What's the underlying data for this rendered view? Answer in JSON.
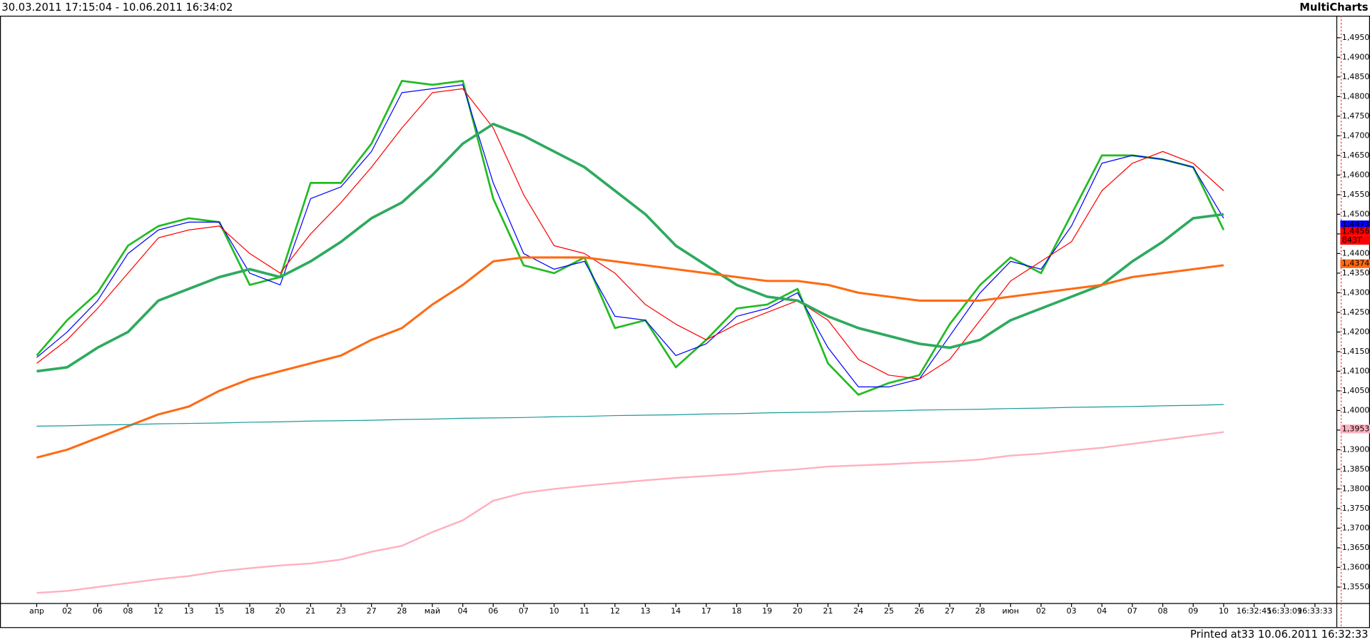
{
  "chart_data": {
    "type": "line",
    "title": "30.03.2011 17:15:04 - 10.06.2011 16:34:02",
    "brand": "MultiCharts",
    "footer": "Printed at33 10.06.2011 16:32:33",
    "categories": [
      "апр",
      "02",
      "06",
      "08",
      "12",
      "13",
      "15",
      "18",
      "20",
      "21",
      "23",
      "27",
      "28",
      "май",
      "04",
      "06",
      "07",
      "10",
      "11",
      "12",
      "13",
      "14",
      "17",
      "18",
      "19",
      "20",
      "21",
      "24",
      "25",
      "26",
      "27",
      "28",
      "июн",
      "02",
      "03",
      "04",
      "07",
      "08",
      "09",
      "10",
      "16:32:45",
      "16:33:09",
      "16:33:33"
    ],
    "series": [
      {
        "color": "#22bb22",
        "width": 2.2,
        "values": [
          1.414,
          1.423,
          1.43,
          1.442,
          1.447,
          1.449,
          1.448,
          1.432,
          1.434,
          1.458,
          1.458,
          1.468,
          1.484,
          1.483,
          1.484,
          1.454,
          1.437,
          1.435,
          1.439,
          1.421,
          1.423,
          1.411,
          1.418,
          1.426,
          1.427,
          1.431,
          1.412,
          1.404,
          1.407,
          1.409,
          1.422,
          1.432,
          1.439,
          1.435,
          1.45,
          1.465,
          1.465,
          1.464,
          1.462,
          1.446,
          null,
          null,
          null
        ]
      },
      {
        "color": "#0000ff",
        "width": 1,
        "values": [
          1.4135,
          1.42,
          1.428,
          1.44,
          1.446,
          1.448,
          1.448,
          1.435,
          1.432,
          1.454,
          1.457,
          1.466,
          1.481,
          1.482,
          1.483,
          1.458,
          1.44,
          1.436,
          1.438,
          1.424,
          1.423,
          1.414,
          1.417,
          1.424,
          1.426,
          1.43,
          1.416,
          1.406,
          1.406,
          1.408,
          1.419,
          1.43,
          1.438,
          1.436,
          1.447,
          1.463,
          1.465,
          1.464,
          1.462,
          1.449,
          null,
          null,
          null
        ]
      },
      {
        "color": "#ff0000",
        "width": 1,
        "values": [
          1.412,
          1.418,
          1.426,
          1.435,
          1.444,
          1.446,
          1.447,
          1.44,
          1.435,
          1.445,
          1.453,
          1.462,
          1.472,
          1.481,
          1.482,
          1.472,
          1.455,
          1.442,
          1.44,
          1.435,
          1.427,
          1.422,
          1.418,
          1.422,
          1.425,
          1.428,
          1.423,
          1.413,
          1.409,
          1.408,
          1.413,
          1.423,
          1.433,
          1.438,
          1.443,
          1.456,
          1.463,
          1.466,
          1.463,
          1.456,
          null,
          null,
          null
        ]
      },
      {
        "color": "#2eaa5e",
        "width": 3,
        "values": [
          1.41,
          1.411,
          1.416,
          1.42,
          1.428,
          1.431,
          1.434,
          1.436,
          1.434,
          1.438,
          1.443,
          1.449,
          1.453,
          1.46,
          1.468,
          1.473,
          1.47,
          1.466,
          1.462,
          1.456,
          1.45,
          1.442,
          1.437,
          1.432,
          1.429,
          1.428,
          1.424,
          1.421,
          1.419,
          1.417,
          1.416,
          1.418,
          1.423,
          1.426,
          1.429,
          1.432,
          1.438,
          1.443,
          1.449,
          1.45,
          null,
          null,
          null
        ]
      },
      {
        "color": "#ff6a13",
        "width": 2.5,
        "values": [
          1.388,
          1.39,
          1.393,
          1.396,
          1.399,
          1.401,
          1.405,
          1.408,
          1.41,
          1.412,
          1.414,
          1.418,
          1.421,
          1.427,
          1.432,
          1.438,
          1.439,
          1.439,
          1.439,
          1.438,
          1.437,
          1.436,
          1.435,
          1.434,
          1.433,
          1.433,
          1.432,
          1.43,
          1.429,
          1.428,
          1.428,
          1.428,
          1.429,
          1.43,
          1.431,
          1.432,
          1.434,
          1.435,
          1.436,
          1.437,
          null,
          null,
          null
        ]
      },
      {
        "color": "#1a9a9a",
        "width": 1,
        "values": [
          1.396,
          1.3961,
          1.3963,
          1.3964,
          1.3966,
          1.3967,
          1.3968,
          1.397,
          1.3971,
          1.3973,
          1.3974,
          1.3975,
          1.3977,
          1.3978,
          1.398,
          1.3981,
          1.3982,
          1.3984,
          1.3985,
          1.3987,
          1.3988,
          1.3989,
          1.3991,
          1.3992,
          1.3994,
          1.3995,
          1.3996,
          1.3998,
          1.3999,
          1.4001,
          1.4002,
          1.4003,
          1.4005,
          1.4006,
          1.4008,
          1.4009,
          1.401,
          1.4012,
          1.4013,
          1.4015,
          null,
          null,
          null
        ]
      },
      {
        "color": "#ffb0c0",
        "width": 2,
        "values": [
          1.3535,
          1.354,
          1.355,
          1.356,
          1.357,
          1.3578,
          1.359,
          1.3598,
          1.3605,
          1.361,
          1.362,
          1.364,
          1.3655,
          1.369,
          1.372,
          1.377,
          1.379,
          1.38,
          1.3808,
          1.3815,
          1.3822,
          1.3828,
          1.3833,
          1.3838,
          1.3845,
          1.385,
          1.3857,
          1.386,
          1.3863,
          1.3867,
          1.387,
          1.3875,
          1.3885,
          1.389,
          1.3898,
          1.3905,
          1.3915,
          1.3925,
          1.3935,
          1.3945,
          null,
          null,
          null
        ]
      }
    ],
    "markers": [
      {
        "value": 1.4473,
        "label": "1,4473",
        "color": "#0000ff"
      },
      {
        "value": 1.4456,
        "label": "1,4456",
        "color": "#ff0000"
      },
      {
        "label": "843T",
        "color": "#ff0000"
      },
      {
        "value": 1.4374,
        "label": "1,4374",
        "color": "#ff6a13"
      },
      {
        "value": 1.3953,
        "label": "1,3953",
        "color": "#ffb0c0"
      }
    ],
    "ylim": [
      1.3508,
      1.5006
    ],
    "yticks": [
      {
        "value": 1.355,
        "label": "1,3550"
      },
      {
        "value": 1.36,
        "label": "1,3600"
      },
      {
        "value": 1.365,
        "label": "1,3650"
      },
      {
        "value": 1.37,
        "label": "1,3700"
      },
      {
        "value": 1.375,
        "label": "1,3750"
      },
      {
        "value": 1.38,
        "label": "1,3800"
      },
      {
        "value": 1.385,
        "label": "1,3850"
      },
      {
        "value": 1.39,
        "label": "1,3900"
      },
      {
        "value": 1.395,
        "label": "1,3950"
      },
      {
        "value": 1.4,
        "label": "1,4000"
      },
      {
        "value": 1.405,
        "label": "1,4050"
      },
      {
        "value": 1.41,
        "label": "1,4100"
      },
      {
        "value": 1.415,
        "label": "1,4150"
      },
      {
        "value": 1.42,
        "label": "1,4200"
      },
      {
        "value": 1.425,
        "label": "1,4250"
      },
      {
        "value": 1.43,
        "label": "1,4300"
      },
      {
        "value": 1.435,
        "label": "1,4350"
      },
      {
        "value": 1.44,
        "label": "1,4400"
      },
      {
        "value": 1.445,
        "label": "1,4450"
      },
      {
        "value": 1.45,
        "label": "1,4500"
      },
      {
        "value": 1.455,
        "label": "1,4550"
      },
      {
        "value": 1.46,
        "label": "1,4600"
      },
      {
        "value": 1.465,
        "label": "1,4650"
      },
      {
        "value": 1.47,
        "label": "1,4700"
      },
      {
        "value": 1.475,
        "label": "1,4750"
      },
      {
        "value": 1.48,
        "label": "1,4800"
      },
      {
        "value": 1.485,
        "label": "1,4850"
      },
      {
        "value": 1.49,
        "label": "1,4900"
      },
      {
        "value": 1.495,
        "label": "1,4950"
      }
    ],
    "grid": false
  }
}
